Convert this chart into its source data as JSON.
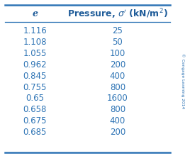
{
  "col1_header": "e",
  "col2_header": "Pressure, $\\boldsymbol{\\sigma'}$ (kN/m$^{2}$)",
  "e_values": [
    "1.116",
    "1.108",
    "1.055",
    "0.962",
    "0.845",
    "0.755",
    "0.65",
    "0.658",
    "0.675",
    "0.685"
  ],
  "pressure_values": [
    "25",
    "50",
    "100",
    "200",
    "400",
    "800",
    "1600",
    "800",
    "400",
    "200"
  ],
  "text_color": "#2E74B5",
  "header_color": "#1F5C99",
  "line_color": "#2E74B5",
  "watermark": "© Cengage Learning 2014",
  "background_color": "#ffffff",
  "font_size": 8.5,
  "header_font_size": 9
}
